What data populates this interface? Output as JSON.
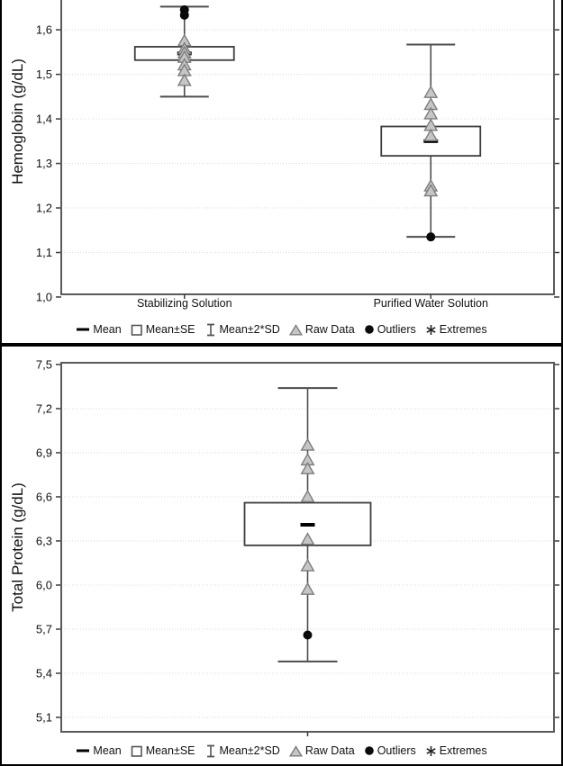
{
  "legend": {
    "items": [
      {
        "symbol": "mean-dash",
        "label": "Mean"
      },
      {
        "symbol": "open-square",
        "label": "Mean±SE"
      },
      {
        "symbol": "i-beam",
        "label": "Mean±2*SD"
      },
      {
        "symbol": "triangle",
        "label": "Raw Data"
      },
      {
        "symbol": "filled-circle",
        "label": "Outliers"
      },
      {
        "symbol": "asterisk",
        "label": "Extremes"
      }
    ]
  },
  "colors": {
    "whisker": "#4d4d4d",
    "box_stroke": "#3d3d3d",
    "box_fill": "#ffffff",
    "raw_fill": "#c6c6c6",
    "raw_stroke": "#7d7d7d",
    "outlier": "#0a0a0a",
    "mean": "#000000",
    "gridline": "#d9d9d9",
    "plot_border": "#5a5a5a",
    "text": "#111111"
  },
  "chart_data": [
    {
      "type": "box",
      "ylabel": "Hemoglobin (g/dL)",
      "decimal_style": "comma",
      "y_axis": {
        "v_top": 1.667,
        "v_bottom": 1.006,
        "clipped_top": true,
        "ticks": [
          {
            "v": 1.0,
            "label": "1,0",
            "grid": false
          },
          {
            "v": 1.1,
            "label": "1,1",
            "grid": true
          },
          {
            "v": 1.2,
            "label": "1,2",
            "grid": true
          },
          {
            "v": 1.3,
            "label": "1,3",
            "grid": true
          },
          {
            "v": 1.4,
            "label": "1,4",
            "grid": true
          },
          {
            "v": 1.5,
            "label": "1,5",
            "grid": true
          },
          {
            "v": 1.6,
            "label": "1,6",
            "grid": true
          }
        ]
      },
      "groups": [
        {
          "label": "Stabilizing Solution",
          "mean": 1.547,
          "se_range": [
            1.532,
            1.562
          ],
          "sd_range": [
            1.45,
            1.652
          ],
          "raw": [
            1.575,
            1.557,
            1.548,
            1.538,
            1.521,
            1.508,
            1.486
          ],
          "outliers": [
            1.645,
            1.633
          ],
          "extremes": []
        },
        {
          "label": "Purified Water Solution",
          "mean": 1.35,
          "se_range": [
            1.317,
            1.383
          ],
          "sd_range": [
            1.135,
            1.567
          ],
          "raw": [
            1.459,
            1.432,
            1.411,
            1.385,
            1.362,
            1.249,
            1.238
          ],
          "outliers": [
            1.135
          ],
          "extremes": []
        }
      ]
    },
    {
      "type": "box",
      "ylabel": "Total Protein (g/dL)",
      "decimal_style": "comma",
      "y_axis": {
        "v_top": 7.512,
        "v_bottom": 5.002,
        "clipped_top": false,
        "ticks": [
          {
            "v": 5.1,
            "label": "5,1",
            "grid": true
          },
          {
            "v": 5.4,
            "label": "5,4",
            "grid": true
          },
          {
            "v": 5.7,
            "label": "5,7",
            "grid": true
          },
          {
            "v": 6.0,
            "label": "6,0",
            "grid": true
          },
          {
            "v": 6.3,
            "label": "6,3",
            "grid": true
          },
          {
            "v": 6.6,
            "label": "6,6",
            "grid": true
          },
          {
            "v": 6.9,
            "label": "6,9",
            "grid": true
          },
          {
            "v": 7.2,
            "label": "7,2",
            "grid": true
          },
          {
            "v": 7.5,
            "label": "7,5",
            "grid": false
          }
        ]
      },
      "groups": [
        {
          "label": "",
          "mean": 6.41,
          "se_range": [
            6.27,
            6.56
          ],
          "sd_range": [
            5.48,
            7.34
          ],
          "raw": [
            6.95,
            6.85,
            6.79,
            6.6,
            6.31,
            6.13,
            5.97
          ],
          "outliers": [
            5.66
          ],
          "extremes": []
        }
      ]
    }
  ]
}
